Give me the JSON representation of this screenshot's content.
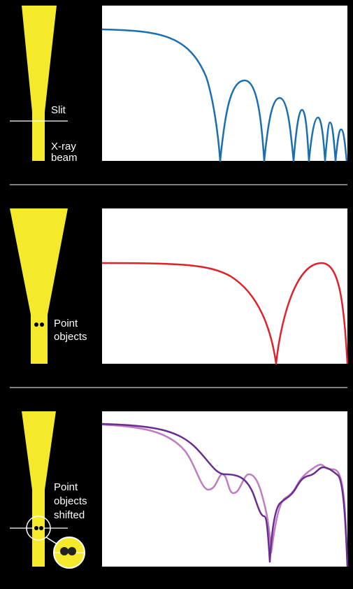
{
  "panels": [
    {
      "labels": [
        "Slit",
        "X-ray",
        "beam"
      ]
    },
    {
      "labels": [
        "Point",
        "objects"
      ]
    },
    {
      "labels": [
        "Point",
        "objects",
        "shifted"
      ]
    }
  ]
}
